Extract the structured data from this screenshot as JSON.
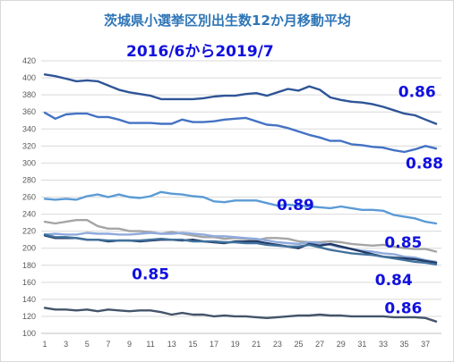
{
  "chart_data": {
    "type": "line",
    "title": "茨城県小選挙区別出生数12か月移動平均",
    "subtitle": "2016/6から2019/7",
    "xlabel": "",
    "ylabel": "",
    "ylim": [
      100,
      420
    ],
    "y_ticks": [
      100,
      120,
      140,
      160,
      180,
      200,
      220,
      240,
      260,
      280,
      300,
      320,
      340,
      360,
      380,
      400,
      420
    ],
    "x": [
      1,
      2,
      3,
      4,
      5,
      6,
      7,
      8,
      9,
      10,
      11,
      12,
      13,
      14,
      15,
      16,
      17,
      18,
      19,
      20,
      21,
      22,
      23,
      24,
      25,
      26,
      27,
      28,
      29,
      30,
      31,
      32,
      33,
      34,
      35,
      36,
      37,
      38
    ],
    "x_ticks": [
      1,
      3,
      5,
      7,
      9,
      11,
      13,
      15,
      17,
      19,
      21,
      23,
      25,
      27,
      29,
      31,
      33,
      35,
      37
    ],
    "grid": true,
    "legend": "none",
    "series": [
      {
        "color": "#2f5597",
        "values": [
          404,
          402,
          399,
          396,
          397,
          396,
          391,
          386,
          383,
          381,
          379,
          375,
          375,
          375,
          375,
          376,
          378,
          379,
          379,
          381,
          382,
          379,
          383,
          387,
          385,
          390,
          386,
          377,
          374,
          372,
          371,
          369,
          366,
          362,
          358,
          356,
          351,
          346
        ]
      },
      {
        "color": "#4472c4",
        "values": [
          359,
          352,
          357,
          358,
          358,
          354,
          354,
          351,
          347,
          347,
          347,
          346,
          346,
          351,
          348,
          348,
          349,
          351,
          352,
          353,
          349,
          345,
          344,
          341,
          337,
          333,
          330,
          326,
          326,
          322,
          321,
          319,
          318,
          315,
          313,
          316,
          320,
          317
        ]
      },
      {
        "color": "#5b9bd5",
        "values": [
          258,
          257,
          258,
          257,
          261,
          263,
          260,
          263,
          260,
          259,
          261,
          266,
          264,
          263,
          261,
          260,
          255,
          254,
          256,
          256,
          256,
          253,
          250,
          251,
          250,
          249,
          248,
          247,
          249,
          247,
          245,
          245,
          244,
          239,
          237,
          235,
          231,
          229
        ]
      },
      {
        "color": "#a5a5a5",
        "values": [
          231,
          229,
          231,
          233,
          233,
          226,
          223,
          223,
          220,
          220,
          219,
          217,
          219,
          217,
          215,
          213,
          213,
          211,
          212,
          211,
          209,
          212,
          212,
          211,
          208,
          207,
          207,
          208,
          207,
          205,
          204,
          203,
          204,
          202,
          200,
          199,
          199,
          196
        ]
      },
      {
        "color": "#8faadc",
        "values": [
          216,
          217,
          216,
          216,
          218,
          217,
          217,
          216,
          216,
          217,
          218,
          217,
          217,
          218,
          217,
          216,
          214,
          214,
          213,
          212,
          211,
          209,
          207,
          206,
          205,
          207,
          206,
          204,
          201,
          199,
          197,
          196,
          194,
          193,
          190,
          189,
          186,
          184
        ]
      },
      {
        "color": "#203864",
        "values": [
          215,
          212,
          212,
          212,
          210,
          210,
          208,
          209,
          209,
          208,
          209,
          210,
          210,
          209,
          210,
          208,
          207,
          206,
          208,
          208,
          208,
          206,
          204,
          202,
          200,
          205,
          203,
          205,
          202,
          199,
          196,
          193,
          190,
          189,
          188,
          187,
          185,
          183
        ]
      },
      {
        "color": "#41719c",
        "values": [
          216,
          213,
          213,
          212,
          210,
          210,
          209,
          209,
          209,
          209,
          210,
          211,
          210,
          210,
          208,
          208,
          208,
          207,
          207,
          206,
          206,
          204,
          203,
          202,
          202,
          204,
          201,
          198,
          196,
          194,
          193,
          192,
          190,
          188,
          186,
          184,
          183,
          181
        ]
      },
      {
        "color": "#44546a",
        "values": [
          130,
          128,
          128,
          127,
          128,
          126,
          128,
          127,
          126,
          127,
          127,
          125,
          122,
          124,
          122,
          122,
          120,
          121,
          120,
          120,
          119,
          118,
          119,
          120,
          121,
          121,
          122,
          121,
          121,
          120,
          120,
          120,
          120,
          119,
          119,
          119,
          118,
          114
        ]
      }
    ],
    "annotations": [
      {
        "text": "0.86",
        "x": 36.2,
        "y": 384
      },
      {
        "text": "0.88",
        "x": 36.9,
        "y": 300
      },
      {
        "text": "0.89",
        "x": 24.7,
        "y": 251
      },
      {
        "text": "0.85",
        "x": 34.9,
        "y": 207
      },
      {
        "text": "0.85",
        "x": 11.0,
        "y": 170
      },
      {
        "text": "0.84",
        "x": 34.0,
        "y": 163
      },
      {
        "text": "0.86",
        "x": 34.9,
        "y": 130
      }
    ]
  }
}
